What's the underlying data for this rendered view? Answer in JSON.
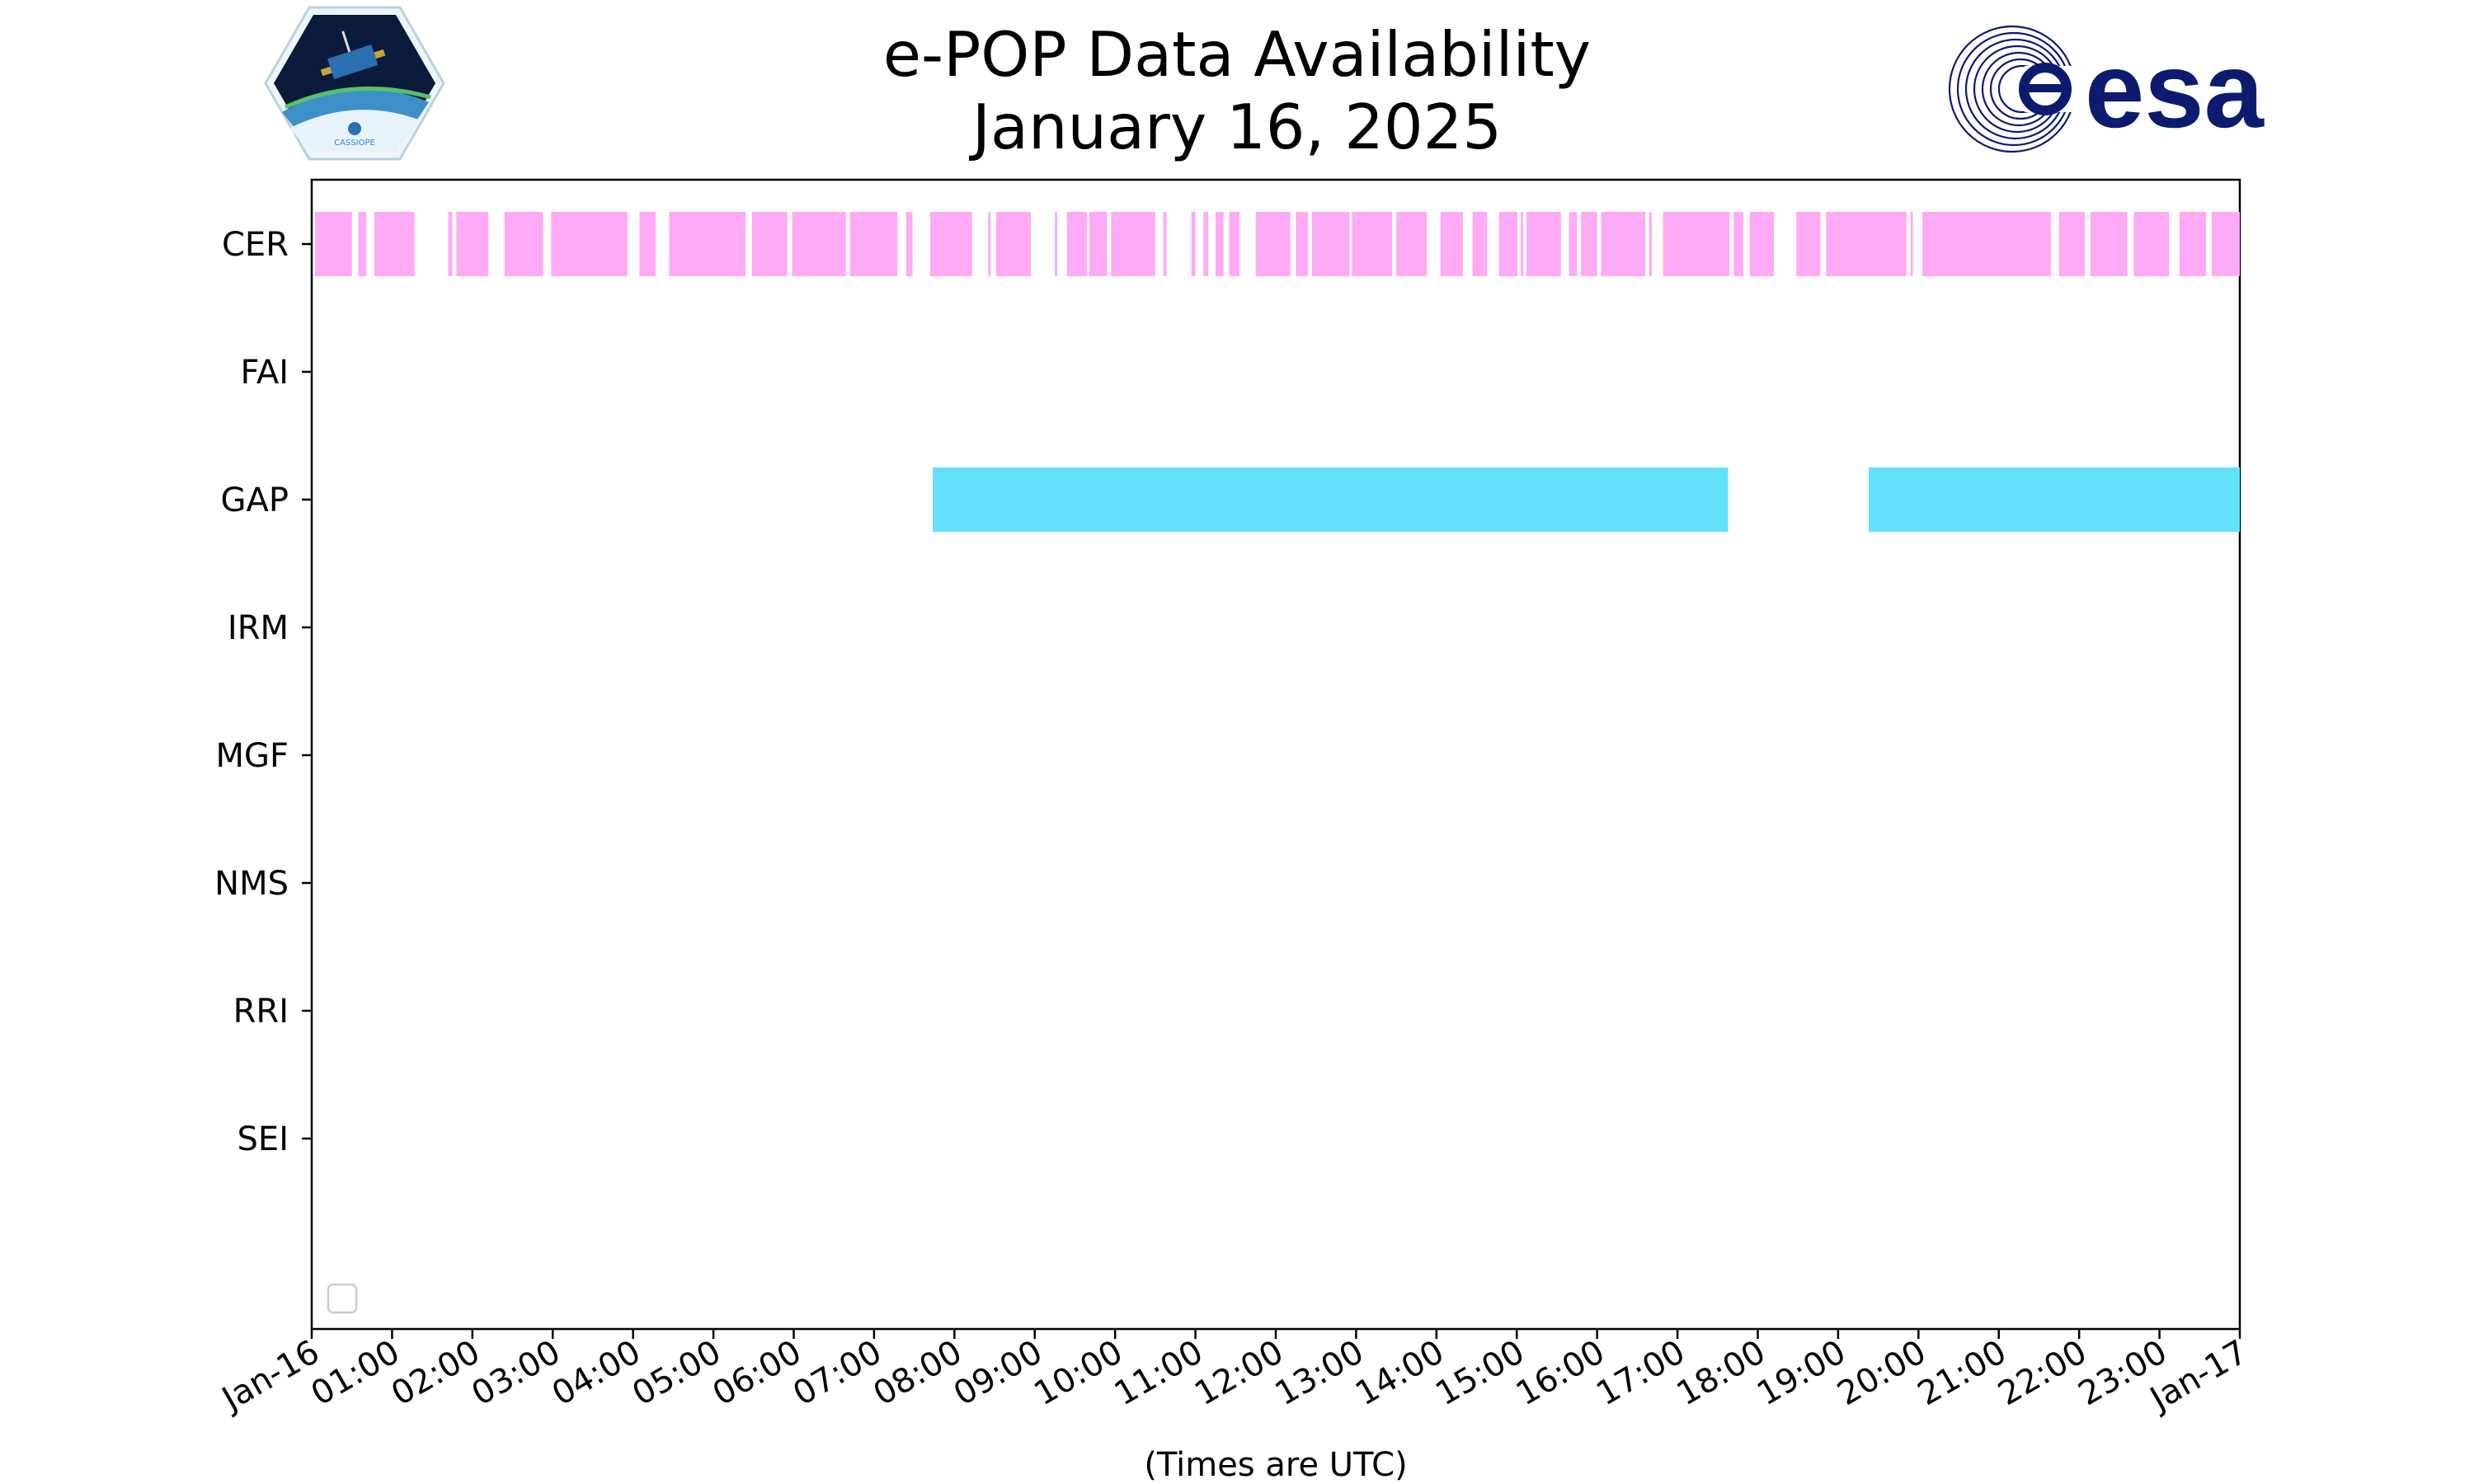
{
  "header": {
    "title_line1": "e-POP Data Availability",
    "title_line2": "January 16, 2025",
    "left_logo": {
      "icon": "cassiope-satellite-hexagon-logo",
      "text": "CASSIOPE"
    },
    "right_logo": {
      "icon": "esa-spiral-logo",
      "text": "esa",
      "color": "#0c1b6e"
    }
  },
  "chart_data": {
    "type": "timeline",
    "title": "e-POP Data Availability January 16, 2025",
    "xlabel": "(Times are UTC)",
    "ylabel": "",
    "x_units": "hours UTC",
    "xlim": [
      0,
      24
    ],
    "x_ticks": [
      "Jan-16",
      "01:00",
      "02:00",
      "03:00",
      "04:00",
      "05:00",
      "06:00",
      "07:00",
      "08:00",
      "09:00",
      "10:00",
      "11:00",
      "12:00",
      "13:00",
      "14:00",
      "15:00",
      "16:00",
      "17:00",
      "18:00",
      "19:00",
      "20:00",
      "21:00",
      "22:00",
      "23:00",
      "Jan-17"
    ],
    "categories": [
      "CER",
      "FAI",
      "GAP",
      "IRM",
      "MGF",
      "NMS",
      "RRI",
      "SEI"
    ],
    "colors": {
      "CER": "#ffaaf5",
      "GAP": "#64e1fa"
    },
    "legend": {
      "placement": "lower-left",
      "entries": []
    },
    "grid": false,
    "series": [
      {
        "instrument": "CER",
        "intervals": [
          [
            0.04,
            0.5
          ],
          [
            0.58,
            0.68
          ],
          [
            0.78,
            1.28
          ],
          [
            1.7,
            1.75
          ],
          [
            1.8,
            2.2
          ],
          [
            2.4,
            2.88
          ],
          [
            2.98,
            3.93
          ],
          [
            4.08,
            4.28
          ],
          [
            4.45,
            5.4
          ],
          [
            5.48,
            5.92
          ],
          [
            5.98,
            6.65
          ],
          [
            6.7,
            7.29
          ],
          [
            7.4,
            7.48
          ],
          [
            7.7,
            8.22
          ],
          [
            8.42,
            8.45
          ],
          [
            8.52,
            8.95
          ],
          [
            9.25,
            9.28
          ],
          [
            9.4,
            9.65
          ],
          [
            9.68,
            9.9
          ],
          [
            9.95,
            10.0
          ],
          [
            10.0,
            10.5
          ],
          [
            10.6,
            10.64
          ],
          [
            10.95,
            11.0
          ],
          [
            11.1,
            11.16
          ],
          [
            11.25,
            11.35
          ],
          [
            11.42,
            11.55
          ],
          [
            11.75,
            12.18
          ],
          [
            12.25,
            12.4
          ],
          [
            12.45,
            12.92
          ],
          [
            12.95,
            13.45
          ],
          [
            13.5,
            13.88
          ],
          [
            14.05,
            14.33
          ],
          [
            14.45,
            14.63
          ],
          [
            14.78,
            15.01
          ],
          [
            15.05,
            15.08
          ],
          [
            15.12,
            15.55
          ],
          [
            15.65,
            15.75
          ],
          [
            15.8,
            16.0
          ],
          [
            16.05,
            16.6
          ],
          [
            16.65,
            16.68
          ],
          [
            16.82,
            17.65
          ],
          [
            17.7,
            17.82
          ],
          [
            17.9,
            18.2
          ],
          [
            18.48,
            18.78
          ],
          [
            18.85,
            19.85
          ],
          [
            19.9,
            19.93
          ],
          [
            20.05,
            21.65
          ],
          [
            21.75,
            22.07
          ],
          [
            22.14,
            22.6
          ],
          [
            22.68,
            23.12
          ],
          [
            23.25,
            23.58
          ],
          [
            23.65,
            24.0
          ]
        ]
      },
      {
        "instrument": "FAI",
        "intervals": []
      },
      {
        "instrument": "GAP",
        "intervals": [
          [
            7.73,
            17.63
          ],
          [
            19.38,
            24.0
          ]
        ]
      },
      {
        "instrument": "IRM",
        "intervals": []
      },
      {
        "instrument": "MGF",
        "intervals": []
      },
      {
        "instrument": "NMS",
        "intervals": []
      },
      {
        "instrument": "RRI",
        "intervals": []
      },
      {
        "instrument": "SEI",
        "intervals": []
      }
    ]
  }
}
